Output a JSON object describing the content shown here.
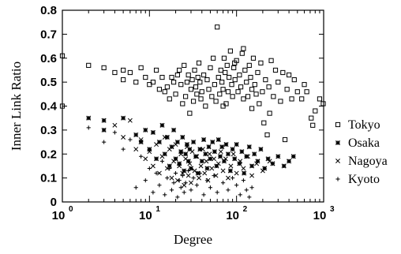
{
  "chart_data": {
    "type": "scatter",
    "xlabel": "Degree",
    "ylabel": "Inner Link Ratio",
    "x_scale": "log",
    "xlim": [
      1,
      1000
    ],
    "ylim": [
      0,
      0.8
    ],
    "x_ticks": [
      {
        "base": "10",
        "exp": "0"
      },
      {
        "base": "10",
        "exp": "1"
      },
      {
        "base": "10",
        "exp": "2"
      },
      {
        "base": "10",
        "exp": "3"
      }
    ],
    "y_ticks": [
      "0",
      "0.1",
      "0.2",
      "0.3",
      "0.4",
      "0.5",
      "0.6",
      "0.7",
      "0.8"
    ],
    "grid": false,
    "legend_position": "right",
    "series": [
      {
        "name": "Tokyo",
        "marker": "open-square",
        "points": [
          [
            1,
            0.61
          ],
          [
            1,
            0.4
          ],
          [
            2,
            0.57
          ],
          [
            3,
            0.56
          ],
          [
            4,
            0.54
          ],
          [
            5,
            0.51
          ],
          [
            5,
            0.55
          ],
          [
            6,
            0.54
          ],
          [
            7,
            0.5
          ],
          [
            8,
            0.56
          ],
          [
            9,
            0.52
          ],
          [
            10,
            0.49
          ],
          [
            11,
            0.5
          ],
          [
            12,
            0.55
          ],
          [
            13,
            0.47
          ],
          [
            14,
            0.52
          ],
          [
            15,
            0.46
          ],
          [
            16,
            0.48
          ],
          [
            17,
            0.43
          ],
          [
            18,
            0.52
          ],
          [
            19,
            0.5
          ],
          [
            20,
            0.45
          ],
          [
            21,
            0.53
          ],
          [
            22,
            0.55
          ],
          [
            23,
            0.49
          ],
          [
            24,
            0.41
          ],
          [
            25,
            0.57
          ],
          [
            26,
            0.44
          ],
          [
            27,
            0.5
          ],
          [
            28,
            0.53
          ],
          [
            29,
            0.37
          ],
          [
            30,
            0.47
          ],
          [
            31,
            0.51
          ],
          [
            32,
            0.42
          ],
          [
            33,
            0.55
          ],
          [
            34,
            0.48
          ],
          [
            35,
            0.45
          ],
          [
            36,
            0.52
          ],
          [
            37,
            0.58
          ],
          [
            38,
            0.5
          ],
          [
            39,
            0.43
          ],
          [
            40,
            0.46
          ],
          [
            42,
            0.53
          ],
          [
            44,
            0.4
          ],
          [
            46,
            0.51
          ],
          [
            48,
            0.47
          ],
          [
            50,
            0.56
          ],
          [
            52,
            0.44
          ],
          [
            54,
            0.6
          ],
          [
            56,
            0.49
          ],
          [
            58,
            0.42
          ],
          [
            60,
            0.73
          ],
          [
            62,
            0.52
          ],
          [
            64,
            0.45
          ],
          [
            66,
            0.55
          ],
          [
            68,
            0.5
          ],
          [
            70,
            0.47
          ],
          [
            72,
            0.6
          ],
          [
            74,
            0.54
          ],
          [
            76,
            0.41
          ],
          [
            78,
            0.57
          ],
          [
            80,
            0.46
          ],
          [
            82,
            0.52
          ],
          [
            85,
            0.63
          ],
          [
            88,
            0.49
          ],
          [
            90,
            0.44
          ],
          [
            93,
            0.56
          ],
          [
            96,
            0.51
          ],
          [
            100,
            0.59
          ],
          [
            104,
            0.46
          ],
          [
            108,
            0.53
          ],
          [
            112,
            0.48
          ],
          [
            116,
            0.62
          ],
          [
            120,
            0.43
          ],
          [
            125,
            0.55
          ],
          [
            130,
            0.5
          ],
          [
            135,
            0.44
          ],
          [
            140,
            0.57
          ],
          [
            145,
            0.52
          ],
          [
            150,
            0.47
          ],
          [
            156,
            0.6
          ],
          [
            162,
            0.49
          ],
          [
            168,
            0.45
          ],
          [
            175,
            0.54
          ],
          [
            182,
            0.41
          ],
          [
            190,
            0.58
          ],
          [
            198,
            0.46
          ],
          [
            206,
            0.33
          ],
          [
            215,
            0.51
          ],
          [
            225,
            0.28
          ],
          [
            235,
            0.48
          ],
          [
            250,
            0.59
          ],
          [
            265,
            0.44
          ],
          [
            280,
            0.55
          ],
          [
            300,
            0.5
          ],
          [
            320,
            0.42
          ],
          [
            340,
            0.54
          ],
          [
            360,
            0.26
          ],
          [
            380,
            0.47
          ],
          [
            400,
            0.53
          ],
          [
            430,
            0.43
          ],
          [
            460,
            0.51
          ],
          [
            500,
            0.46
          ],
          [
            560,
            0.43
          ],
          [
            640,
            0.46
          ],
          [
            720,
            0.35
          ],
          [
            800,
            0.38
          ],
          [
            900,
            0.43
          ],
          [
            990,
            0.41
          ],
          [
            750,
            0.32
          ],
          [
            600,
            0.49
          ],
          [
            120,
            0.64
          ],
          [
            95,
            0.58
          ],
          [
            70,
            0.4
          ],
          [
            150,
            0.39
          ],
          [
            240,
            0.37
          ]
        ]
      },
      {
        "name": "Osaka",
        "marker": "asterisk",
        "points": [
          [
            2,
            0.35
          ],
          [
            3,
            0.34
          ],
          [
            3,
            0.3
          ],
          [
            5,
            0.35
          ],
          [
            7,
            0.28
          ],
          [
            8,
            0.25
          ],
          [
            9,
            0.3
          ],
          [
            10,
            0.22
          ],
          [
            11,
            0.29
          ],
          [
            12,
            0.18
          ],
          [
            13,
            0.25
          ],
          [
            14,
            0.32
          ],
          [
            15,
            0.2
          ],
          [
            16,
            0.27
          ],
          [
            17,
            0.15
          ],
          [
            18,
            0.23
          ],
          [
            19,
            0.3
          ],
          [
            20,
            0.18
          ],
          [
            21,
            0.25
          ],
          [
            22,
            0.16
          ],
          [
            23,
            0.21
          ],
          [
            24,
            0.27
          ],
          [
            25,
            0.13
          ],
          [
            26,
            0.2
          ],
          [
            27,
            0.24
          ],
          [
            28,
            0.17
          ],
          [
            29,
            0.22
          ],
          [
            30,
            0.14
          ],
          [
            32,
            0.25
          ],
          [
            34,
            0.19
          ],
          [
            36,
            0.12
          ],
          [
            38,
            0.22
          ],
          [
            40,
            0.17
          ],
          [
            42,
            0.26
          ],
          [
            44,
            0.2
          ],
          [
            46,
            0.14
          ],
          [
            48,
            0.23
          ],
          [
            50,
            0.18
          ],
          [
            53,
            0.25
          ],
          [
            56,
            0.21
          ],
          [
            59,
            0.15
          ],
          [
            62,
            0.26
          ],
          [
            65,
            0.19
          ],
          [
            68,
            0.23
          ],
          [
            72,
            0.17
          ],
          [
            76,
            0.24
          ],
          [
            80,
            0.2
          ],
          [
            85,
            0.13
          ],
          [
            90,
            0.22
          ],
          [
            95,
            0.18
          ],
          [
            100,
            0.24
          ],
          [
            108,
            0.16
          ],
          [
            115,
            0.21
          ],
          [
            122,
            0.12
          ],
          [
            130,
            0.19
          ],
          [
            140,
            0.23
          ],
          [
            150,
            0.15
          ],
          [
            160,
            0.2
          ],
          [
            175,
            0.17
          ],
          [
            190,
            0.22
          ],
          [
            210,
            0.14
          ],
          [
            230,
            0.18
          ],
          [
            260,
            0.16
          ],
          [
            300,
            0.19
          ],
          [
            350,
            0.15
          ],
          [
            400,
            0.17
          ],
          [
            450,
            0.19
          ]
        ]
      },
      {
        "name": "Nagoya",
        "marker": "x",
        "points": [
          [
            4,
            0.32
          ],
          [
            5,
            0.27
          ],
          [
            6,
            0.34
          ],
          [
            7,
            0.22
          ],
          [
            8,
            0.26
          ],
          [
            9,
            0.18
          ],
          [
            10,
            0.21
          ],
          [
            11,
            0.15
          ],
          [
            12,
            0.24
          ],
          [
            13,
            0.12
          ],
          [
            14,
            0.19
          ],
          [
            15,
            0.27
          ],
          [
            16,
            0.14
          ],
          [
            17,
            0.22
          ],
          [
            18,
            0.1
          ],
          [
            19,
            0.17
          ],
          [
            20,
            0.24
          ],
          [
            21,
            0.09
          ],
          [
            22,
            0.15
          ],
          [
            23,
            0.2
          ],
          [
            24,
            0.12
          ],
          [
            25,
            0.07
          ],
          [
            26,
            0.18
          ],
          [
            27,
            0.23
          ],
          [
            28,
            0.11
          ],
          [
            29,
            0.16
          ],
          [
            30,
            0.08
          ],
          [
            31,
            0.21
          ],
          [
            33,
            0.13
          ],
          [
            35,
            0.19
          ],
          [
            37,
            0.1
          ],
          [
            39,
            0.15
          ],
          [
            41,
            0.22
          ],
          [
            43,
            0.12
          ],
          [
            45,
            0.17
          ],
          [
            47,
            0.09
          ],
          [
            49,
            0.2
          ],
          [
            52,
            0.14
          ],
          [
            55,
            0.18
          ],
          [
            58,
            0.11
          ],
          [
            62,
            0.16
          ],
          [
            66,
            0.21
          ],
          [
            70,
            0.13
          ],
          [
            75,
            0.18
          ],
          [
            80,
            0.1
          ],
          [
            86,
            0.15
          ],
          [
            92,
            0.2
          ],
          [
            100,
            0.12
          ],
          [
            110,
            0.17
          ],
          [
            120,
            0.14
          ],
          [
            135,
            0.19
          ],
          [
            150,
            0.11
          ],
          [
            170,
            0.16
          ],
          [
            200,
            0.13
          ],
          [
            240,
            0.17
          ]
        ]
      },
      {
        "name": "Kyoto",
        "marker": "plus",
        "points": [
          [
            2,
            0.31
          ],
          [
            3,
            0.25
          ],
          [
            4,
            0.29
          ],
          [
            5,
            0.22
          ],
          [
            6,
            0.26
          ],
          [
            7,
            0.06
          ],
          [
            8,
            0.19
          ],
          [
            9,
            0.09
          ],
          [
            10,
            0.14
          ],
          [
            11,
            0.04
          ],
          [
            12,
            0.12
          ],
          [
            13,
            0.07
          ],
          [
            14,
            0.17
          ],
          [
            15,
            0.03
          ],
          [
            16,
            0.1
          ],
          [
            17,
            0.14
          ],
          [
            18,
            0.05
          ],
          [
            19,
            0.08
          ],
          [
            20,
            0.12
          ],
          [
            21,
            0.02
          ],
          [
            22,
            0.09
          ],
          [
            23,
            0.06
          ],
          [
            24,
            0.11
          ],
          [
            25,
            0.04
          ],
          [
            26,
            0.08
          ],
          [
            28,
            0.13
          ],
          [
            30,
            0.05
          ],
          [
            32,
            0.1
          ],
          [
            35,
            0.07
          ],
          [
            38,
            0.12
          ],
          [
            42,
            0.03
          ],
          [
            46,
            0.09
          ],
          [
            50,
            0.06
          ],
          [
            55,
            0.11
          ],
          [
            60,
            0.04
          ],
          [
            70,
            0.08
          ],
          [
            80,
            0.05
          ],
          [
            90,
            0.1
          ],
          [
            100,
            0.07
          ],
          [
            110,
            0.03
          ],
          [
            120,
            0.09
          ],
          [
            130,
            0.05
          ],
          [
            140,
            0.02
          ],
          [
            150,
            0.06
          ]
        ]
      }
    ]
  }
}
